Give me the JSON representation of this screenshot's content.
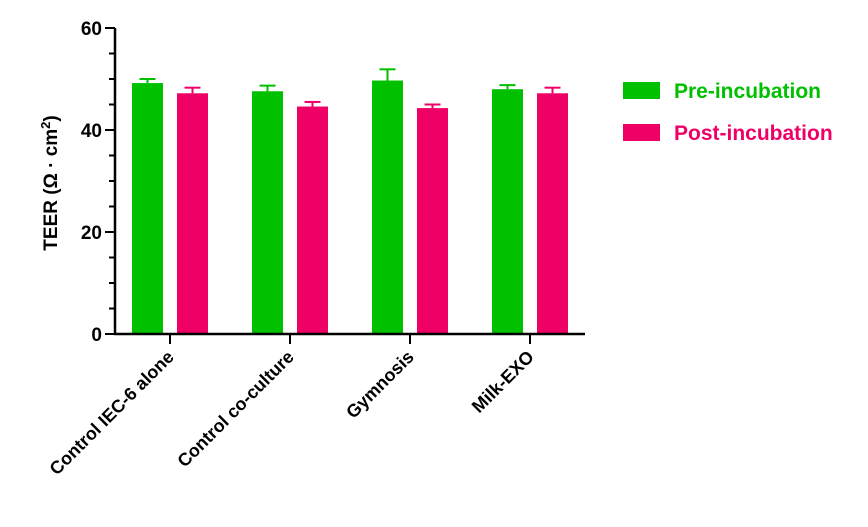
{
  "chart_data": {
    "type": "bar",
    "title": "",
    "ylabel_main": "TEER (Ω · cm",
    "ylabel_sup": "2",
    "ylabel_close": ")",
    "xlabel": "",
    "ylim": [
      0,
      60
    ],
    "yticks": [
      0,
      20,
      40,
      60
    ],
    "minor_tick_step": 5,
    "categories": [
      "Control IEC-6 alone",
      "Control co-culture",
      "Gymnosis",
      "Milk-EXO"
    ],
    "series": [
      {
        "name": "Pre-incubation",
        "color": "#00c000",
        "values": [
          49.2,
          47.6,
          49.7,
          48.0
        ],
        "errors": [
          0.8,
          1.1,
          2.2,
          0.8
        ]
      },
      {
        "name": "Post-incubation",
        "color": "#ee0066",
        "values": [
          47.2,
          44.6,
          44.3,
          47.2
        ],
        "errors": [
          1.1,
          0.9,
          0.7,
          1.1
        ]
      }
    ],
    "legend_position": "top-right",
    "grid": false
  }
}
